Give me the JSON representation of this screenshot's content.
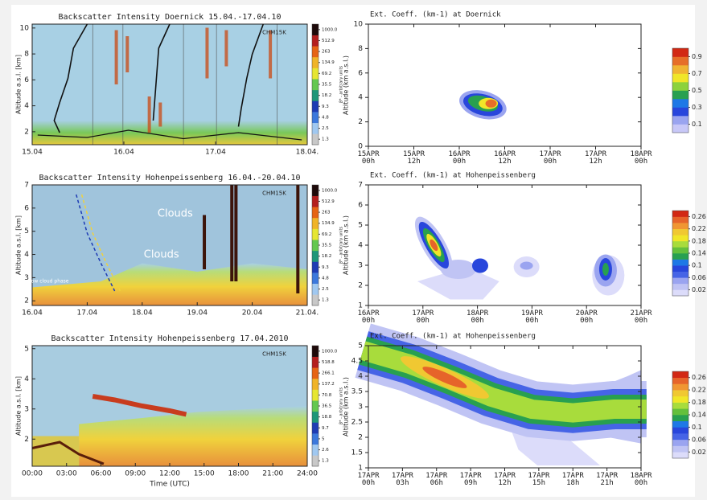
{
  "chart_data": [
    {
      "type": "heatmap",
      "title": "Backscatter Intensity Doernick 15.04.-17.04.10",
      "y_label": "Altitude a.s.l. [km]",
      "categories": [
        "15.04",
        "16.04",
        "17.04",
        "18.04."
      ],
      "ylim": [
        1,
        10.3
      ],
      "yticks": [
        2,
        4,
        6,
        8,
        10
      ],
      "colorbar_ticks": [
        1.3,
        2.5,
        4.8,
        9.3,
        18.2,
        35.5,
        69.2,
        134.9,
        263.0,
        512.9,
        {
          "value": 1000,
          "label": "1000.0"
        }
      ],
      "colorbar_label": "β* - arbitrary units",
      "colors": [
        "#c8c8c8",
        "#a0c8f0",
        "#3c78dc",
        "#1e3cb4",
        "#1e9678",
        "#64c850",
        "#e6e632",
        "#f0b428",
        "#e66414",
        "#b41e1e",
        "#1e0a0a"
      ],
      "annotations": [
        "CHM15K"
      ]
    },
    {
      "type": "heatmap",
      "title": "Backscatter Intensity Hohenpeissenberg 16.04.-20.04.10",
      "y_label": "Altitude a.s.l. [km]",
      "categories": [
        "16.04",
        "17.04",
        "18.04",
        "19.04",
        "20.04",
        "21.04."
      ],
      "ylim": [
        1.8,
        7
      ],
      "yticks": [
        2,
        3,
        4,
        5,
        6,
        7
      ],
      "colorbar_ticks": [
        1.3,
        2.5,
        4.8,
        9.3,
        18.2,
        35.5,
        69.2,
        134.9,
        263.0,
        512.9,
        {
          "value": 1000,
          "label": "1000.0"
        }
      ],
      "colorbar_label": "β* - arbitrary units",
      "colors": [
        "#c8c8c8",
        "#a0c8f0",
        "#3c78dc",
        "#1e3cb4",
        "#1e9678",
        "#64c850",
        "#e6e632",
        "#f0b428",
        "#e66414",
        "#b41e1e",
        "#1e0a0a"
      ],
      "annotations": [
        "CHM15K",
        "Clouds",
        "Clouds",
        "Low cloud phase"
      ]
    },
    {
      "type": "heatmap",
      "title": "Backscatter Intensity Hohenpeissenberg 17.04.2010",
      "y_label": "Altitude a.s.l. [km]",
      "x_label": "Time (UTC)",
      "categories": [
        "00:00",
        "03:00",
        "06:00",
        "09:00",
        "12:00",
        "15:00",
        "18:00",
        "21:00",
        "24:00"
      ],
      "ylim": [
        1.1,
        5.1
      ],
      "yticks": [
        2,
        3,
        4,
        5
      ],
      "colorbar_ticks": [
        1.3,
        2.6,
        5.0,
        9.7,
        18.8,
        36.5,
        70.8,
        137.2,
        266.1,
        518.8,
        {
          "value": 1000,
          "label": "1000.0"
        }
      ],
      "colorbar_label": "β* - arbitrary units",
      "colors": [
        "#c8c8c8",
        "#a0c8f0",
        "#3c78dc",
        "#1e3cb4",
        "#1e9678",
        "#64c850",
        "#e6e632",
        "#f0b428",
        "#e66414",
        "#b41e1e",
        "#1e0a0a"
      ],
      "annotations": [
        "CHM15K"
      ]
    },
    {
      "type": "contour",
      "title": "Ext. Coeff. (km-1) at Doernick",
      "y_label": "Altitude (km a.s.l.)",
      "categories": [
        "15APR 00h",
        "15APR 12h",
        "16APR 00h",
        "16APR 12h",
        "17APR 00h",
        "17APR 12h",
        "18APR 00h"
      ],
      "ylim": [
        0,
        10
      ],
      "yticks": [
        0,
        2,
        4,
        6,
        8,
        10
      ],
      "colorbar_ticks": [
        0.1,
        0.3,
        0.5,
        0.7,
        0.9
      ],
      "colors": [
        "#c8c8f8",
        "#9aa4f0",
        "#2846dc",
        "#1e78e6",
        "#28a050",
        "#8cd23c",
        "#f0e628",
        "#f0b432",
        "#e66e28",
        "#d22814"
      ]
    },
    {
      "type": "contour",
      "title": "Ext. Coeff. (km-1) at Hohenpeissenberg",
      "y_label": "Altitude (km a.s.l.)",
      "categories": [
        "16APR 00h",
        "17APR 00h",
        "18APR 00h",
        "19APR 00h",
        "20APR 00h",
        "21APR 00h"
      ],
      "ylim": [
        1,
        7
      ],
      "yticks": [
        1,
        2,
        3,
        4,
        5,
        6,
        7
      ],
      "colorbar_ticks": [
        0.02,
        0.06,
        0.1,
        0.14,
        0.18,
        0.22,
        0.26
      ],
      "colors": [
        "#dcdcfa",
        "#c0c4f4",
        "#9aa4f0",
        "#4664e6",
        "#2846dc",
        "#1e78e6",
        "#28a050",
        "#64c03c",
        "#a8dc3c",
        "#f0e628",
        "#f0c832",
        "#f09632",
        "#e6642a",
        "#d22814"
      ]
    },
    {
      "type": "contour",
      "title": "Ext. Coeff. (km-1) at Hohenpeissenberg",
      "y_label": "Altitude (km a.s.l.)",
      "categories": [
        "17APR 00h",
        "17APR 03h",
        "17APR 06h",
        "17APR 09h",
        "17APR 12h",
        "17APR 15h",
        "17APR 18h",
        "17APR 21h",
        "18APR 00h"
      ],
      "ylim": [
        1,
        5
      ],
      "yticks": [
        1,
        1.5,
        2,
        2.5,
        3,
        3.5,
        4,
        4.5,
        5
      ],
      "colorbar_ticks": [
        0.02,
        0.06,
        0.1,
        0.14,
        0.18,
        0.22,
        0.26
      ],
      "colors": [
        "#dcdcfa",
        "#c0c4f4",
        "#9aa4f0",
        "#4664e6",
        "#2846dc",
        "#1e78e6",
        "#28a050",
        "#64c03c",
        "#a8dc3c",
        "#f0e628",
        "#f0c832",
        "#f09632",
        "#e6642a",
        "#d22814"
      ]
    }
  ]
}
